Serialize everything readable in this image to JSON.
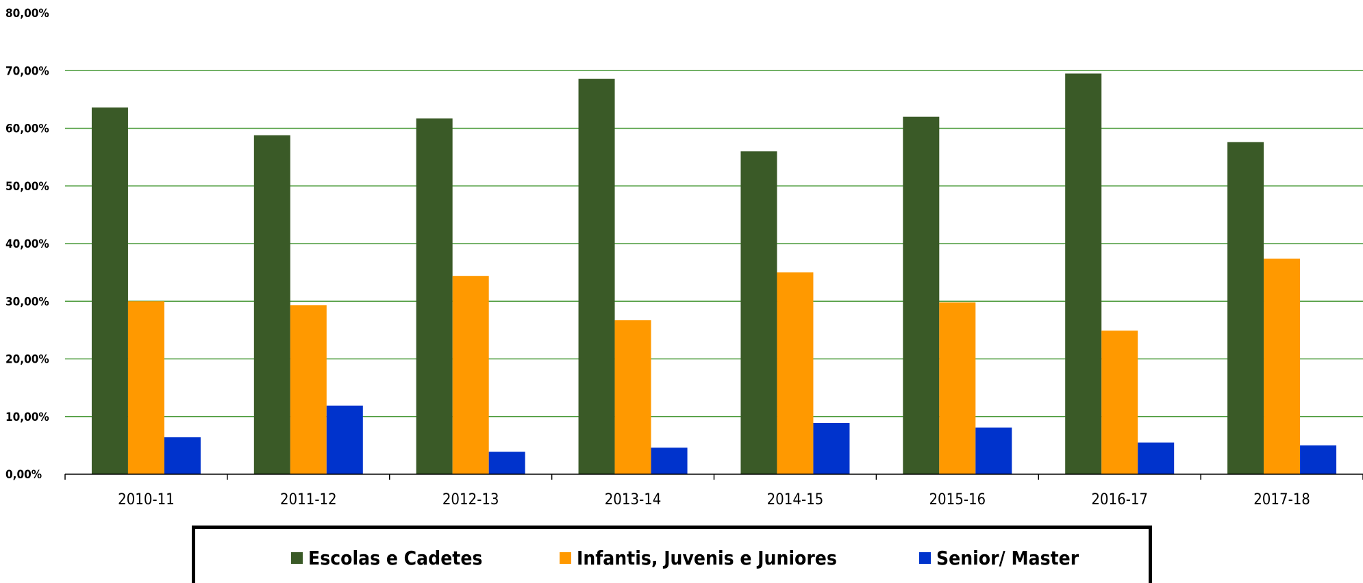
{
  "chart_data": {
    "type": "bar",
    "categories": [
      "2010-11",
      "2011-12",
      "2012-13",
      "2013-14",
      "2014-15",
      "2015-16",
      "2016-17",
      "2017-18"
    ],
    "series": [
      {
        "name": "Escolas e Cadetes",
        "color": "#3a5a27",
        "values": [
          63.6,
          58.8,
          61.7,
          68.6,
          56.0,
          62.0,
          69.5,
          57.6
        ]
      },
      {
        "name": "Infantis, Juvenis e Juniores",
        "color": "#ff9900",
        "values": [
          30.0,
          29.3,
          34.4,
          26.7,
          35.0,
          29.8,
          24.9,
          37.4
        ]
      },
      {
        "name": "Senior/ Master",
        "color": "#0033cc",
        "values": [
          6.4,
          11.9,
          3.9,
          4.6,
          8.9,
          8.1,
          5.5,
          5.0
        ]
      }
    ],
    "ylim": [
      0,
      80
    ],
    "yticks": [
      "0,00%",
      "10,00%",
      "20,00%",
      "30,00%",
      "40,00%",
      "50,00%",
      "60,00%",
      "70,00%",
      "80,00%"
    ],
    "grid": true,
    "gridline_color": "#4a9a3a",
    "legend_position": "bottom"
  }
}
